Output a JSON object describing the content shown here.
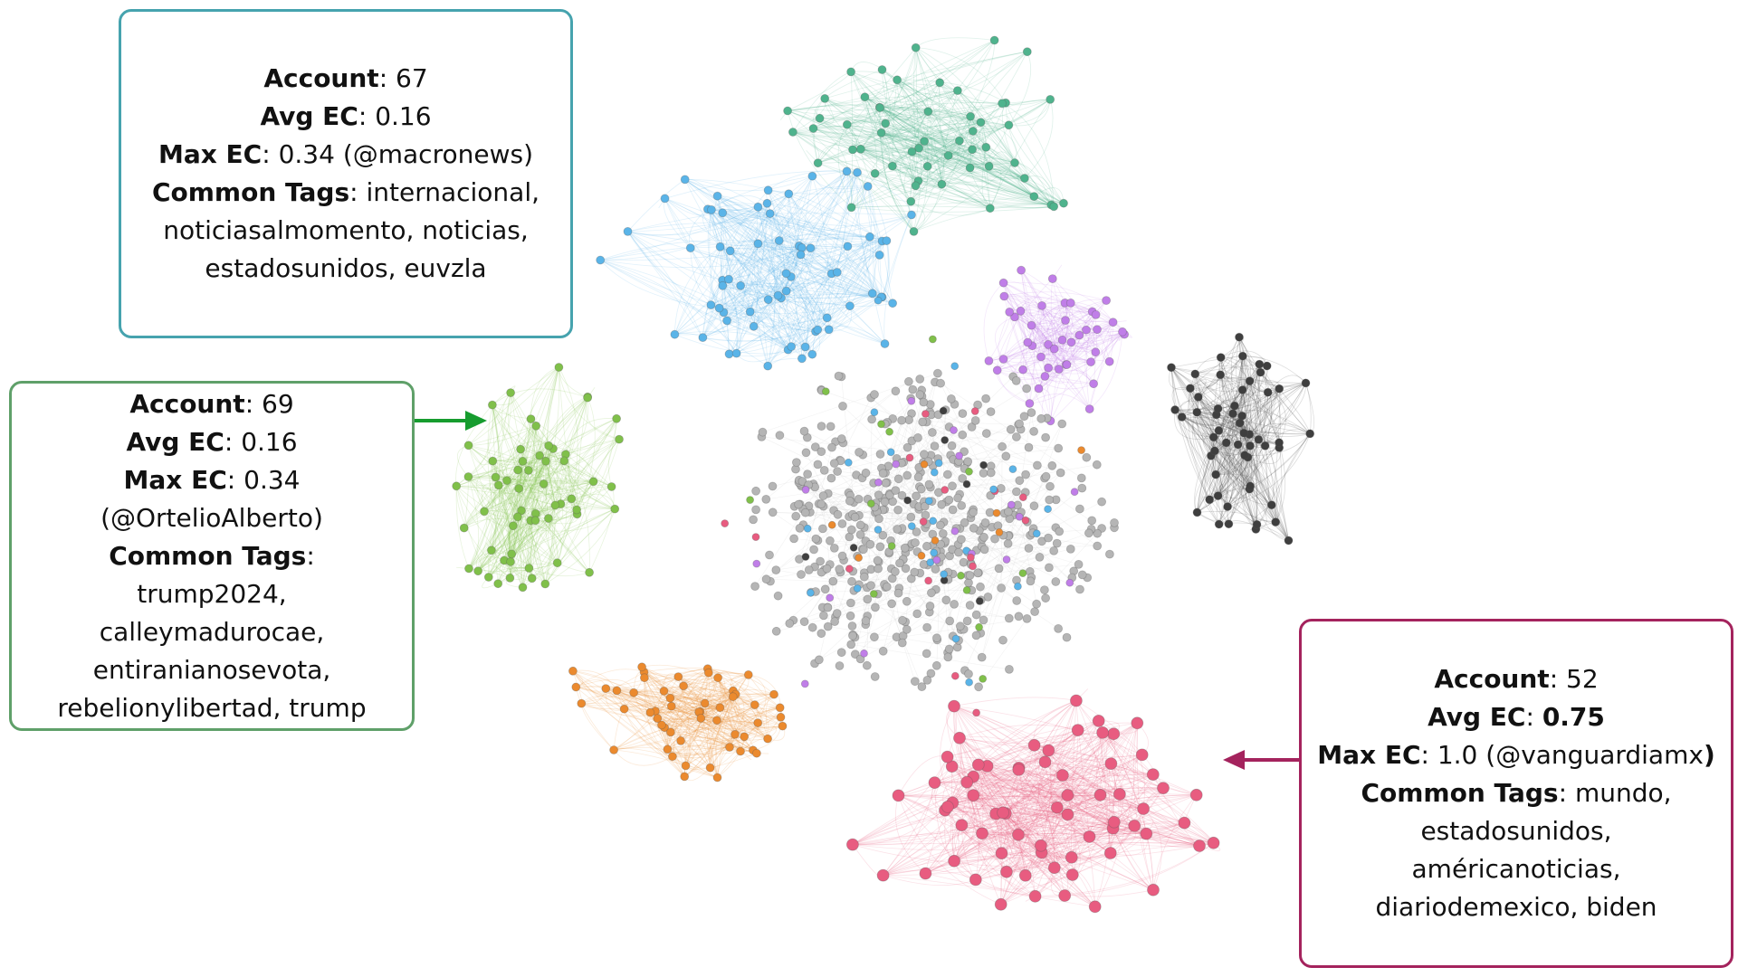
{
  "clusters": [
    {
      "id": "teal",
      "color": "#46A3AE",
      "account_label": "Account",
      "account_value": "67",
      "avg_ec_label": "Avg EC",
      "avg_ec_value": "0.16",
      "max_ec_label": "Max EC",
      "max_ec_value": "0.34 (@macronews)",
      "tags_label": "Common Tags",
      "tags_value": "internacional, noticiasalmomento, noticias, estadosunidos, euvzla"
    },
    {
      "id": "green",
      "color": "#5FA069",
      "account_label": "Account",
      "account_value": "69",
      "avg_ec_label": "Avg EC",
      "avg_ec_value": "0.16",
      "max_ec_label": "Max EC",
      "max_ec_value": "0.34",
      "max_ec_handle": "(@OrtelioAlberto)",
      "tags_label": "Common Tags",
      "tags_value": "trump2024, calleymadurocae, entiranianosevota, rebelionylibertad, trump"
    },
    {
      "id": "crimson",
      "color": "#A4235D",
      "account_label": "Account",
      "account_value": "52",
      "avg_ec_label": "Avg EC",
      "avg_ec_value": "0.75",
      "max_ec_label": "Max EC",
      "max_ec_value": "1.0 (@vanguardiamx",
      "max_ec_close": ")",
      "tags_label": "Common Tags",
      "tags_value": "mundo, estadosunidos, américanoticias, diariodemexico, biden"
    }
  ],
  "community_colors": {
    "mint": "#4FB38D",
    "sky": "#5AB4E8",
    "lime": "#80C04A",
    "orange": "#EB8A2E",
    "pink": "#E85C80",
    "violet": "#C07EE8",
    "charcoal": "#3F3F3F",
    "gray": "#B5B5B5"
  },
  "arrow_colors": {
    "green": "#169C2E",
    "crimson": "#A4235D"
  }
}
